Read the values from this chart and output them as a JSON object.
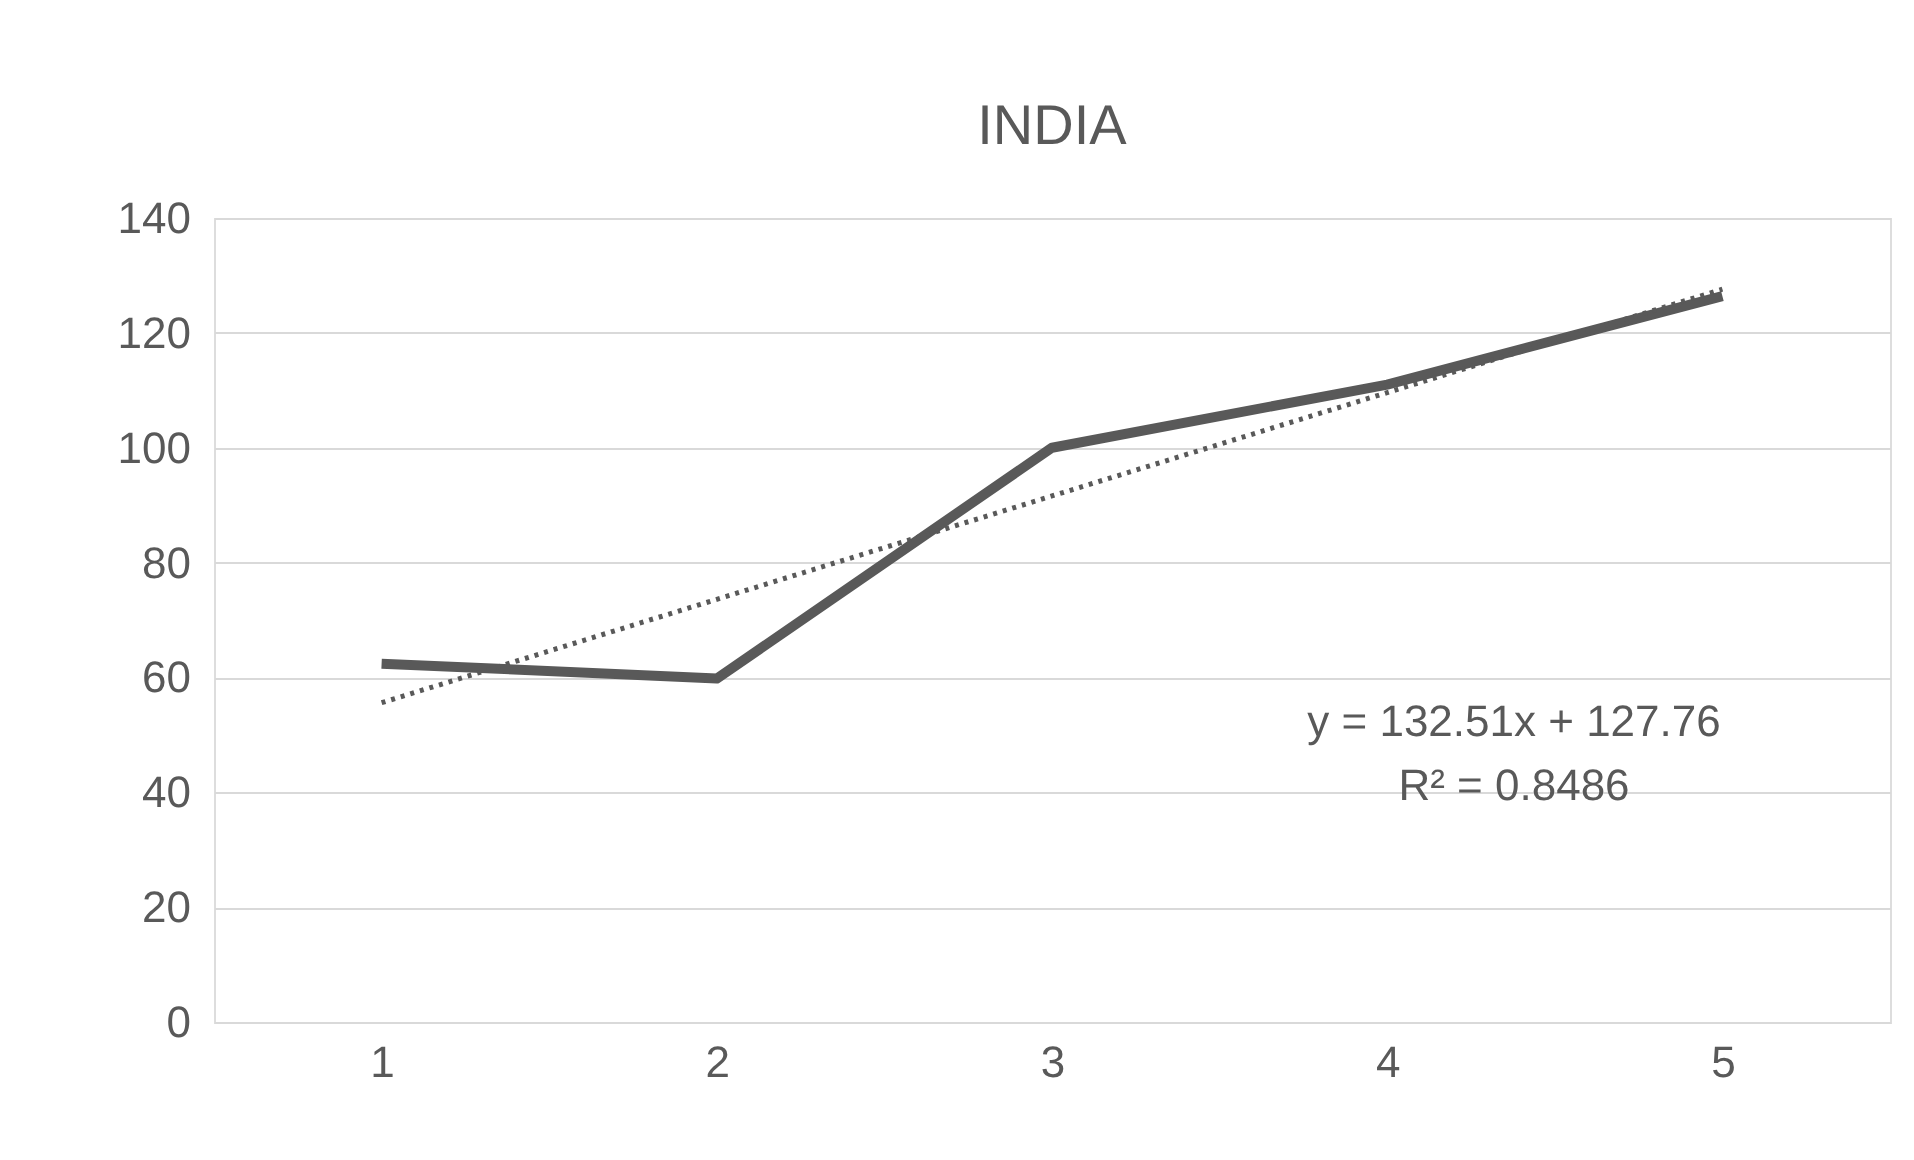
{
  "chart_data": {
    "type": "line",
    "title": "INDIA",
    "categories": [
      "1",
      "2",
      "3",
      "4",
      "5"
    ],
    "series": [
      {
        "color": "#595959",
        "values": [
          62.4,
          59.8,
          100,
          111,
          126.4
        ],
        "line_style": "solid"
      },
      {
        "type": "line",
        "color": "#595959",
        "values": [
          55.6,
          73.6,
          91.6,
          109.6,
          127.6
        ],
        "line_style": "dotted"
      }
    ],
    "ylim": [
      0,
      140
    ],
    "yticks": [
      0,
      20,
      40,
      60,
      80,
      100,
      120,
      140
    ],
    "grid": "y",
    "marker": "none",
    "annotations": [
      "y = 132.51x + 127.76",
      "R² = 0.8486"
    ]
  }
}
